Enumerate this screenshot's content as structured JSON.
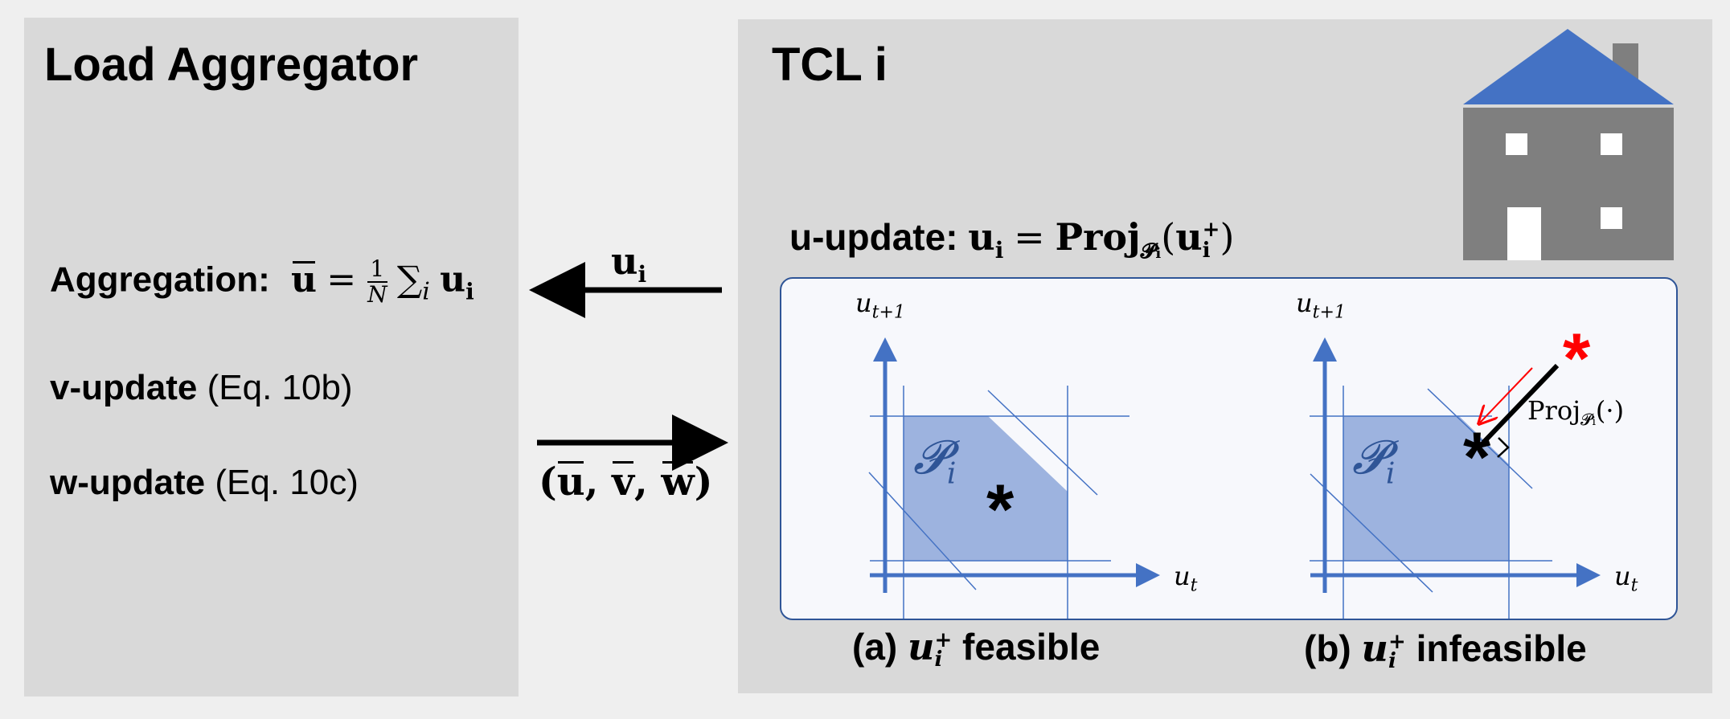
{
  "left_panel": {
    "title": "Load Aggregator",
    "aggregation": {
      "label": "Aggregation:",
      "lhs": "u",
      "frac_num": "1",
      "frac_den": "N",
      "sum": "∑",
      "sum_sub": "i",
      "term": "u",
      "term_sub": "i"
    },
    "v_update": {
      "label": "v-update",
      "ref": "(Eq. 10b)"
    },
    "w_update": {
      "label": "w-update",
      "ref": "(Eq. 10c)"
    }
  },
  "arrows": {
    "to_aggregator": {
      "symbol": "u",
      "sub": "i"
    },
    "to_tcl": {
      "open": "(",
      "u": "u",
      "v": "v",
      "w": "w",
      "sep": ",",
      "close": ")"
    }
  },
  "right_panel": {
    "title": "TCL i",
    "u_update": {
      "label": "u-update:",
      "lhs": "u",
      "lhs_sub": "i",
      "eq": "=",
      "proj": "Proj",
      "proj_sub": "𝓟",
      "proj_sub_i": "i",
      "arg": "u",
      "arg_sub": "i",
      "arg_sup": "+"
    },
    "plot_a": {
      "y_label_base": "u",
      "y_label_sub": "t+1",
      "x_label_base": "u",
      "x_label_sub": "t",
      "set_label": "𝓟",
      "set_sub": "i",
      "marker": "*"
    },
    "plot_b": {
      "y_label_base": "u",
      "y_label_sub": "t+1",
      "x_label_base": "u",
      "x_label_sub": "t",
      "set_label": "𝓟",
      "set_sub": "i",
      "marker": "*",
      "red_marker": "*",
      "proj_label": "Proj",
      "proj_label_sub": "𝓟",
      "proj_label_sub_i": "i",
      "proj_arg": "(·)"
    },
    "caption_a": {
      "tag": "(a)",
      "var": "u",
      "var_sub": "i",
      "var_sup": "+",
      "text": "feasible"
    },
    "caption_b": {
      "tag": "(b)",
      "var": "u",
      "var_sub": "i",
      "var_sup": "+",
      "text": "infeasible"
    }
  },
  "colors": {
    "panel": "#d9d9d9",
    "accent": "#4472c4",
    "set_fill": "#9db3df",
    "house_body": "#7f7f7f",
    "red": "#ff0000"
  }
}
